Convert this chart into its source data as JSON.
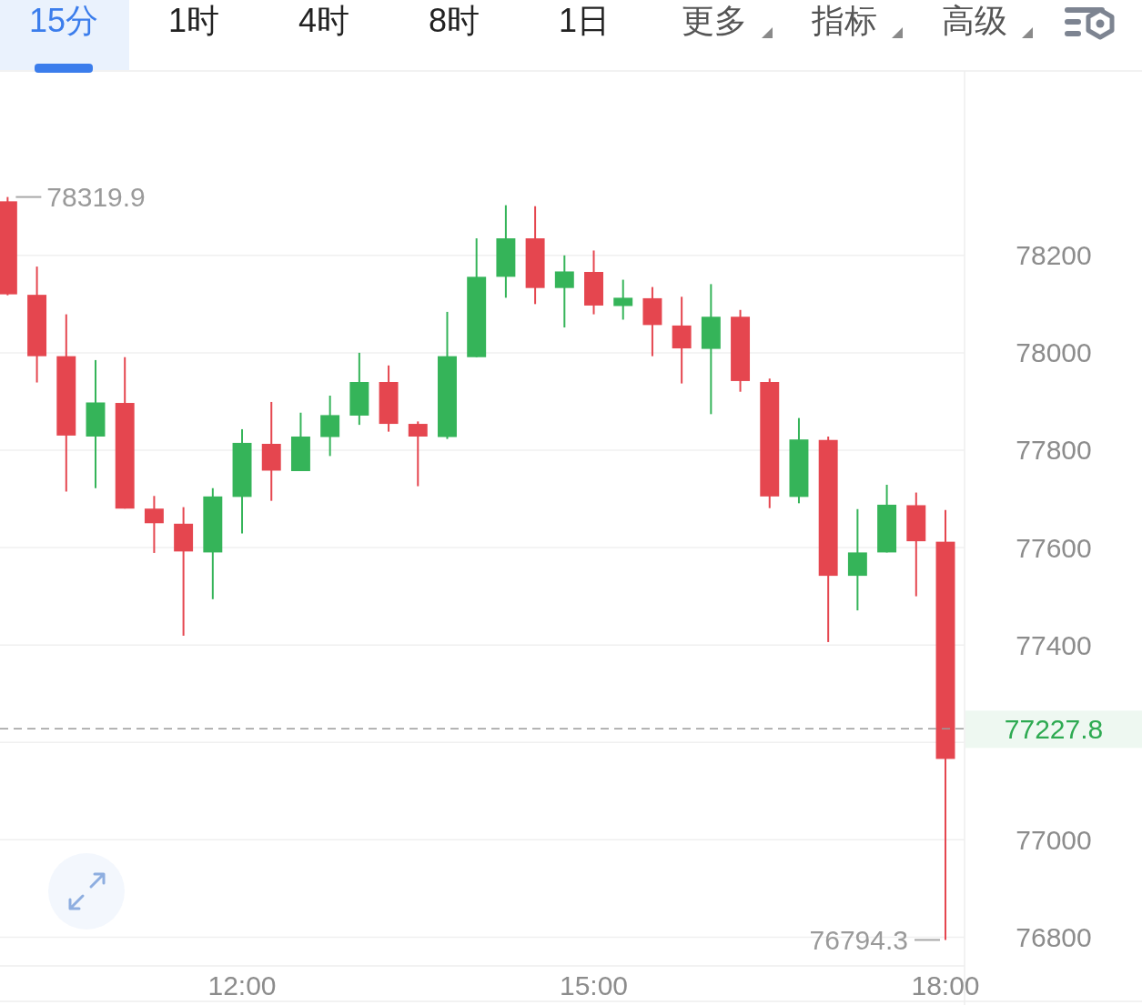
{
  "chart_data": {
    "type": "candlestick",
    "annotations": [
      "15分",
      "1时",
      "4时",
      "8时",
      "1日",
      "更多",
      "指标",
      "高级",
      {
        "text": "78319.9",
        "x": 10,
        "y": 78319.9
      },
      {
        "text": "76794.3",
        "x": 18,
        "y": 76794.3
      }
    ],
    "x": [
      10,
      10.25,
      10.5,
      10.75,
      11,
      11.25,
      11.5,
      11.75,
      12,
      12.25,
      12.5,
      12.75,
      13,
      13.25,
      13.5,
      13.75,
      14,
      14.25,
      14.5,
      14.75,
      15,
      15.25,
      15.5,
      15.75,
      16,
      16.25,
      16.5,
      16.75,
      17,
      17.25,
      17.5,
      17.75,
      18
    ],
    "ohlc": [
      [
        78311,
        78319.9,
        78118,
        78120
      ],
      [
        78119,
        78177,
        77939,
        77993
      ],
      [
        77993,
        78079,
        77715,
        77830
      ],
      [
        77828,
        77985,
        77722,
        77898
      ],
      [
        77897,
        77991,
        77680,
        77680
      ],
      [
        77680,
        77706,
        77589,
        77650
      ],
      [
        77649,
        77683,
        77419,
        77592
      ],
      [
        77590,
        77722,
        77494,
        77705
      ],
      [
        77704,
        77843,
        77629,
        77815
      ],
      [
        77813,
        77899,
        77696,
        77758
      ],
      [
        77757,
        77877,
        77757,
        77828
      ],
      [
        77827,
        77912,
        77788,
        77872
      ],
      [
        77871,
        78000,
        77852,
        77940
      ],
      [
        77940,
        77974,
        77838,
        77854
      ],
      [
        77854,
        77859,
        77726,
        77828
      ],
      [
        77827,
        78084,
        77823,
        77993
      ],
      [
        77991,
        78235,
        77991,
        78156
      ],
      [
        78156,
        78303,
        78113,
        78235
      ],
      [
        78235,
        78301,
        78100,
        78133
      ],
      [
        78133,
        78200,
        78052,
        78167
      ],
      [
        78166,
        78210,
        78079,
        78097
      ],
      [
        78096,
        78150,
        78068,
        78113
      ],
      [
        78112,
        78135,
        77993,
        78057
      ],
      [
        78056,
        78115,
        77937,
        78009
      ],
      [
        78008,
        78141,
        77874,
        78074
      ],
      [
        78074,
        78088,
        77920,
        77942
      ],
      [
        77940,
        77947,
        77681,
        77705
      ],
      [
        77704,
        77866,
        77691,
        77822
      ],
      [
        77821,
        77828,
        77406,
        77542
      ],
      [
        77542,
        77679,
        77471,
        77590
      ],
      [
        77590,
        77729,
        77590,
        77688
      ],
      [
        77687,
        77713,
        77500,
        77613
      ],
      [
        77612,
        77677,
        76794.3,
        77166
      ]
    ],
    "colors": [
      "#e5464f",
      "#e5464f",
      "#e5464f",
      "#35b459",
      "#e5464f",
      "#e5464f",
      "#e5464f",
      "#35b459",
      "#35b459",
      "#e5464f",
      "#35b459",
      "#35b459",
      "#35b459",
      "#e5464f",
      "#e5464f",
      "#35b459",
      "#35b459",
      "#35b459",
      "#e5464f",
      "#35b459",
      "#e5464f",
      "#35b459",
      "#e5464f",
      "#e5464f",
      "#35b459",
      "#e5464f",
      "#e5464f",
      "#35b459",
      "#e5464f",
      "#35b459",
      "#35b459",
      "#e5464f",
      "#e5464f"
    ],
    "xlim": [
      9.935,
      18.163
    ],
    "xticks": [
      {
        "value": 12,
        "label": "12:00"
      },
      {
        "value": 15,
        "label": "15:00"
      },
      {
        "value": 18,
        "label": "18:00"
      }
    ],
    "ylim": [
      76741,
      78575
    ],
    "yticks": [
      76800,
      77000,
      {
        "value": 77200,
        "label": null
      },
      77400,
      77600,
      77800,
      78000,
      78200
    ],
    "ref_lines": [
      {
        "axis": "y",
        "value": 77227.8,
        "label": "77227.8",
        "color": "#9a9a9a",
        "line_style": "dashed"
      }
    ],
    "grid": "y"
  }
}
